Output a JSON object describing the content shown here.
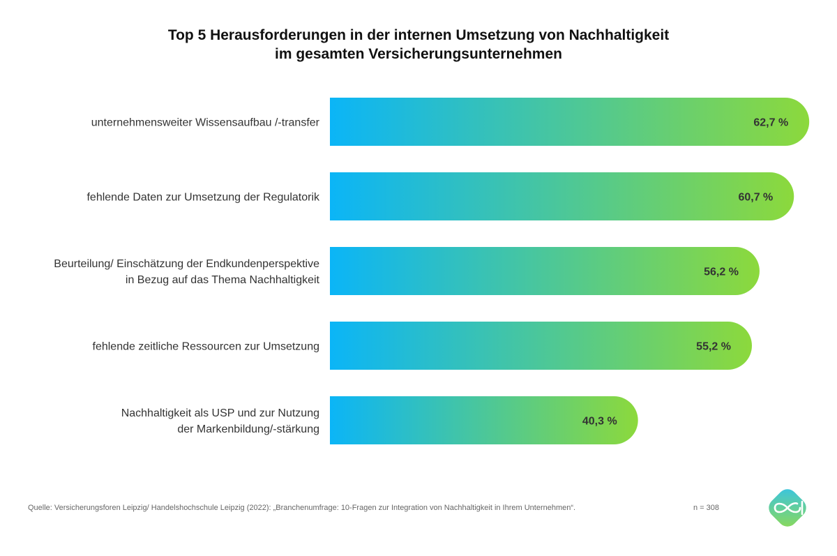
{
  "title_line1": "Top 5 Herausforderungen in der internen Umsetzung von Nachhaltigkeit",
  "title_line2": "im gesamten Versicherungsunternehmen",
  "source": "Quelle: Versicherungsforen Leipzig/ Handelshochschule Leipzig (2022): „Branchenumfrage: 10-Fragen zur Integration von Nachhaltigkeit in Ihrem Unternehmen“.",
  "sample_size": "n = 308",
  "colors": {
    "bar_gradient_start": "#0bb5f7",
    "bar_gradient_end": "#8cd93c",
    "logo_start": "#35c3e8",
    "logo_end": "#8fda52"
  },
  "chart_data": {
    "type": "bar",
    "orientation": "horizontal",
    "categories": [
      [
        "unternehmensweiter Wissensaufbau /-transfer"
      ],
      [
        "fehlende Daten zur Umsetzung der Regulatorik"
      ],
      [
        "Beurteilung/ Einschätzung der Endkundenperspektive",
        "in Bezug auf das Thema Nachhaltigkeit"
      ],
      [
        "fehlende zeitliche Ressourcen zur Umsetzung"
      ],
      [
        "Nachhaltigkeit als USP und zur Nutzung",
        "der Markenbildung/-stärkung"
      ]
    ],
    "values": [
      62.7,
      60.7,
      56.2,
      55.2,
      40.3
    ],
    "value_labels": [
      "62,7 %",
      "60,7 %",
      "56,2 %",
      "55,2 %",
      "40,3 %"
    ],
    "unit": "%",
    "xlim": [
      0,
      100
    ],
    "grid": false,
    "legend": "none"
  }
}
